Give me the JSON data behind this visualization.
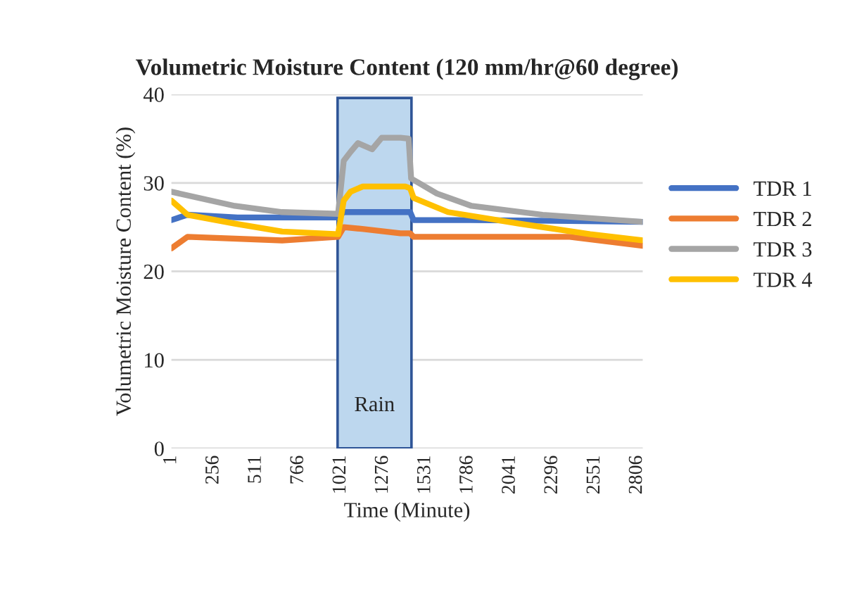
{
  "chart_data": {
    "type": "line",
    "title": "Volumetric Moisture Content (120 mm/hr@60 degree)",
    "xlabel": "Time (Minute)",
    "ylabel": "Volumetric Moisture Content (%)",
    "xlim": [
      1,
      2840
    ],
    "xticks": [
      1,
      256,
      511,
      766,
      1021,
      1276,
      1531,
      1786,
      2041,
      2296,
      2551,
      2806
    ],
    "ylim": [
      0,
      40
    ],
    "yticks": [
      0,
      10,
      20,
      30,
      40
    ],
    "grid": "y",
    "legend": "right",
    "line_style": "solid",
    "marker": "none",
    "bands": [
      {
        "axis": "x",
        "from": 1002,
        "to": 1447,
        "label": "Rain",
        "color": "#bdd7ee"
      }
    ],
    "series": [
      {
        "name": "TDR 1",
        "color": "#4472c4",
        "x": [
          1,
          98,
          400,
          1005,
          1039,
          1200,
          1439,
          1460,
          1800,
          2400,
          2840
        ],
        "values": [
          25.8,
          26.4,
          26.1,
          26.1,
          26.7,
          26.7,
          26.7,
          25.8,
          25.8,
          25.7,
          25.6
        ]
      },
      {
        "name": "TDR 2",
        "color": "#ed7d31",
        "x": [
          1,
          98,
          668,
          1005,
          1039,
          1150,
          1380,
          1439,
          1460,
          2400,
          2840
        ],
        "values": [
          22.6,
          23.9,
          23.5,
          23.9,
          25.0,
          24.8,
          24.3,
          24.3,
          23.9,
          23.9,
          22.9
        ]
      },
      {
        "name": "TDR 3",
        "color": "#a5a5a5",
        "x": [
          1,
          383,
          668,
          1005,
          1039,
          1080,
          1125,
          1210,
          1268,
          1381,
          1430,
          1445,
          1600,
          1809,
          2237,
          2840
        ],
        "values": [
          29.0,
          27.4,
          26.7,
          26.5,
          32.5,
          33.5,
          34.5,
          33.8,
          35.1,
          35.1,
          35.0,
          30.5,
          28.8,
          27.4,
          26.4,
          25.6
        ]
      },
      {
        "name": "TDR 4",
        "color": "#ffc000",
        "x": [
          1,
          98,
          383,
          668,
          1005,
          1039,
          1080,
          1154,
          1410,
          1439,
          1460,
          1667,
          2095,
          2523,
          2840
        ],
        "values": [
          28.0,
          26.4,
          25.4,
          24.5,
          24.2,
          28.0,
          29.0,
          29.6,
          29.6,
          29.4,
          28.3,
          26.7,
          25.4,
          24.2,
          23.5
        ]
      }
    ]
  }
}
